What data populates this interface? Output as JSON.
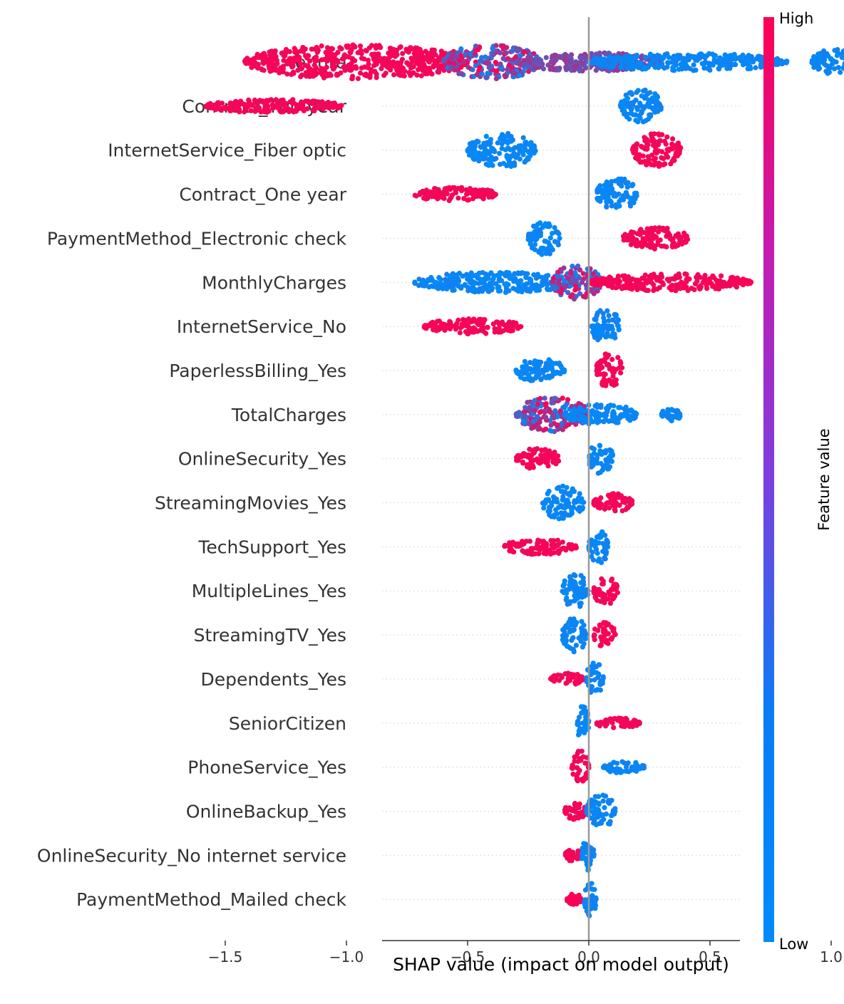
{
  "chart_data": {
    "type": "scatter",
    "subtype": "shap-beeswarm",
    "xlabel": "SHAP value (impact on model output)",
    "xticks": [
      -1.5,
      -1.0,
      -0.5,
      0.0,
      0.5,
      1.0
    ],
    "xtick_labels": [
      "−1.5",
      "−1.0",
      "−0.5",
      "0.0",
      "0.5",
      "1.0"
    ],
    "xlim": [
      -1.7,
      1.25
    ],
    "reference_line_x": 0.0,
    "colorbar": {
      "label": "Feature value",
      "high_label": "High",
      "low_label": "Low",
      "high_color": "#ff0052",
      "mid_color": "#9b1fd0",
      "low_color": "#008bfb"
    },
    "features": [
      {
        "name": "tenure",
        "clusters": [
          {
            "min": -1.42,
            "max": -0.5,
            "color": "high",
            "spread": 1.0
          },
          {
            "min": -0.6,
            "max": -0.2,
            "color": "mix",
            "spread": 1.0
          },
          {
            "min": -0.3,
            "max": 0.3,
            "color": "mid",
            "spread": 0.55
          },
          {
            "min": 0.0,
            "max": 0.82,
            "color": "low",
            "spread": 0.5
          },
          {
            "min": 0.92,
            "max": 1.12,
            "color": "low",
            "spread": 0.8
          }
        ]
      },
      {
        "name": "Contract_Two year",
        "clusters": [
          {
            "min": -1.58,
            "max": -1.02,
            "color": "high",
            "spread": 0.4
          },
          {
            "min": 0.13,
            "max": 0.3,
            "color": "low",
            "spread": 1.0
          }
        ]
      },
      {
        "name": "InternetService_Fiber optic",
        "clusters": [
          {
            "min": -0.5,
            "max": -0.22,
            "color": "low",
            "spread": 1.0
          },
          {
            "min": 0.18,
            "max": 0.38,
            "color": "high",
            "spread": 1.0
          }
        ]
      },
      {
        "name": "Contract_One year",
        "clusters": [
          {
            "min": -0.72,
            "max": -0.38,
            "color": "high",
            "spread": 0.4
          },
          {
            "min": 0.03,
            "max": 0.2,
            "color": "low",
            "spread": 0.95
          }
        ]
      },
      {
        "name": "PaymentMethod_Electronic check",
        "clusters": [
          {
            "min": -0.25,
            "max": -0.12,
            "color": "low",
            "spread": 1.0
          },
          {
            "min": 0.14,
            "max": 0.41,
            "color": "high",
            "spread": 0.65
          }
        ]
      },
      {
        "name": "MonthlyCharges",
        "clusters": [
          {
            "min": -0.72,
            "max": -0.05,
            "color": "low",
            "spread": 0.6
          },
          {
            "min": -0.15,
            "max": 0.05,
            "color": "mix",
            "spread": 1.0
          },
          {
            "min": 0.0,
            "max": 0.67,
            "color": "high",
            "spread": 0.5
          }
        ]
      },
      {
        "name": "InternetService_No",
        "clusters": [
          {
            "min": -0.68,
            "max": -0.28,
            "color": "high",
            "spread": 0.45
          },
          {
            "min": 0.01,
            "max": 0.13,
            "color": "low",
            "spread": 1.0
          }
        ]
      },
      {
        "name": "PaperlessBilling_Yes",
        "clusters": [
          {
            "min": -0.3,
            "max": -0.1,
            "color": "low",
            "spread": 0.7
          },
          {
            "min": 0.03,
            "max": 0.14,
            "color": "high",
            "spread": 1.0
          }
        ]
      },
      {
        "name": "TotalCharges",
        "clusters": [
          {
            "min": -0.3,
            "max": 0.0,
            "color": "mix",
            "spread": 1.0
          },
          {
            "min": -0.1,
            "max": 0.2,
            "color": "low",
            "spread": 0.6
          },
          {
            "min": 0.3,
            "max": 0.38,
            "color": "low",
            "spread": 0.4
          }
        ]
      },
      {
        "name": "OnlineSecurity_Yes",
        "clusters": [
          {
            "min": -0.3,
            "max": -0.12,
            "color": "high",
            "spread": 0.6
          },
          {
            "min": 0.0,
            "max": 0.1,
            "color": "low",
            "spread": 1.0
          }
        ]
      },
      {
        "name": "StreamingMovies_Yes",
        "clusters": [
          {
            "min": -0.19,
            "max": -0.02,
            "color": "low",
            "spread": 1.0
          },
          {
            "min": 0.02,
            "max": 0.18,
            "color": "high",
            "spread": 0.55
          }
        ]
      },
      {
        "name": "TechSupport_Yes",
        "clusters": [
          {
            "min": -0.35,
            "max": -0.05,
            "color": "high",
            "spread": 0.45
          },
          {
            "min": 0.0,
            "max": 0.08,
            "color": "low",
            "spread": 1.0
          }
        ]
      },
      {
        "name": "MultipleLines_Yes",
        "clusters": [
          {
            "min": -0.11,
            "max": 0.0,
            "color": "low",
            "spread": 1.0
          },
          {
            "min": 0.02,
            "max": 0.12,
            "color": "high",
            "spread": 0.8
          }
        ]
      },
      {
        "name": "StreamingTV_Yes",
        "clusters": [
          {
            "min": -0.11,
            "max": -0.01,
            "color": "low",
            "spread": 1.0
          },
          {
            "min": 0.02,
            "max": 0.11,
            "color": "high",
            "spread": 0.75
          }
        ]
      },
      {
        "name": "Dependents_Yes",
        "clusters": [
          {
            "min": -0.16,
            "max": -0.02,
            "color": "high",
            "spread": 0.35
          },
          {
            "min": -0.01,
            "max": 0.06,
            "color": "low",
            "spread": 1.0
          }
        ]
      },
      {
        "name": "SeniorCitizen",
        "clusters": [
          {
            "min": -0.05,
            "max": 0.0,
            "color": "low",
            "spread": 1.0
          },
          {
            "min": 0.03,
            "max": 0.21,
            "color": "high",
            "spread": 0.3
          }
        ]
      },
      {
        "name": "PhoneService_Yes",
        "clusters": [
          {
            "min": -0.07,
            "max": 0.0,
            "color": "high",
            "spread": 1.0
          },
          {
            "min": 0.06,
            "max": 0.23,
            "color": "low",
            "spread": 0.35
          }
        ]
      },
      {
        "name": "OnlineBackup_Yes",
        "clusters": [
          {
            "min": -0.1,
            "max": -0.01,
            "color": "high",
            "spread": 0.5
          },
          {
            "min": -0.01,
            "max": 0.11,
            "color": "low",
            "spread": 1.0
          }
        ]
      },
      {
        "name": "OnlineSecurity_No internet service",
        "clusters": [
          {
            "min": -0.1,
            "max": -0.03,
            "color": "high",
            "spread": 0.35
          },
          {
            "min": -0.03,
            "max": 0.03,
            "color": "low",
            "spread": 1.0
          }
        ]
      },
      {
        "name": "PaymentMethod_Mailed check",
        "clusters": [
          {
            "min": -0.09,
            "max": -0.03,
            "color": "high",
            "spread": 0.35
          },
          {
            "min": -0.02,
            "max": 0.03,
            "color": "low",
            "spread": 1.0
          }
        ]
      }
    ]
  }
}
